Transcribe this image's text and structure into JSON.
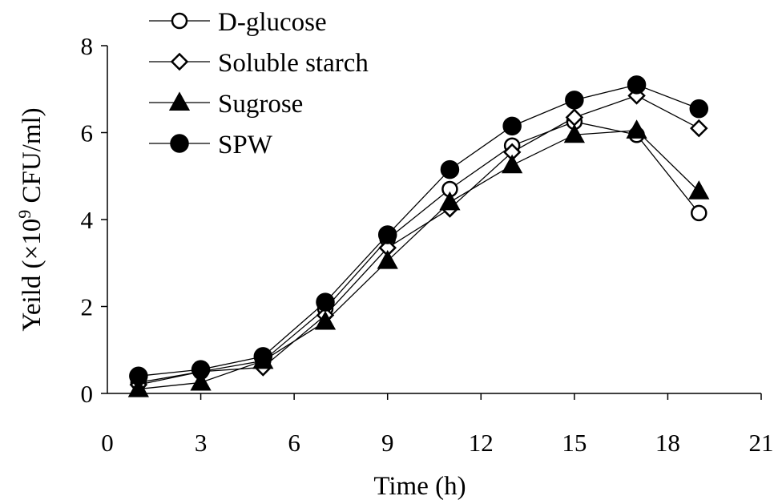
{
  "chart_data": {
    "type": "line",
    "xlabel": "Time (h)",
    "ylabel": {
      "prefix": "Yeild (×10",
      "superscript": "9",
      "suffix": " CFU/ml)"
    },
    "xlim": [
      0,
      21
    ],
    "ylim": [
      0,
      8
    ],
    "xticks": [
      0,
      3,
      6,
      9,
      12,
      15,
      18,
      21
    ],
    "yticks": [
      0,
      2,
      4,
      6,
      8
    ],
    "grid": false,
    "legend_position": "top-left",
    "x": [
      1,
      3,
      5,
      7,
      9,
      11,
      13,
      15,
      17,
      19
    ],
    "series": [
      {
        "name": "D-glucose",
        "marker": "circle-open",
        "color": "#000000",
        "values": [
          0.25,
          0.5,
          0.75,
          1.95,
          3.55,
          4.7,
          5.7,
          6.25,
          5.95,
          4.15
        ]
      },
      {
        "name": "Soluble starch",
        "marker": "diamond-open",
        "color": "#000000",
        "values": [
          0.2,
          0.5,
          0.6,
          1.8,
          3.35,
          4.25,
          5.55,
          6.35,
          6.85,
          6.1
        ]
      },
      {
        "name": "Sugrose",
        "marker": "triangle-filled",
        "color": "#000000",
        "values": [
          0.1,
          0.25,
          0.75,
          1.65,
          3.05,
          4.4,
          5.25,
          5.95,
          6.05,
          4.65
        ]
      },
      {
        "name": "SPW",
        "marker": "circle-filled",
        "color": "#000000",
        "values": [
          0.4,
          0.55,
          0.85,
          2.1,
          3.65,
          5.15,
          6.15,
          6.75,
          7.1,
          6.55
        ]
      }
    ]
  }
}
